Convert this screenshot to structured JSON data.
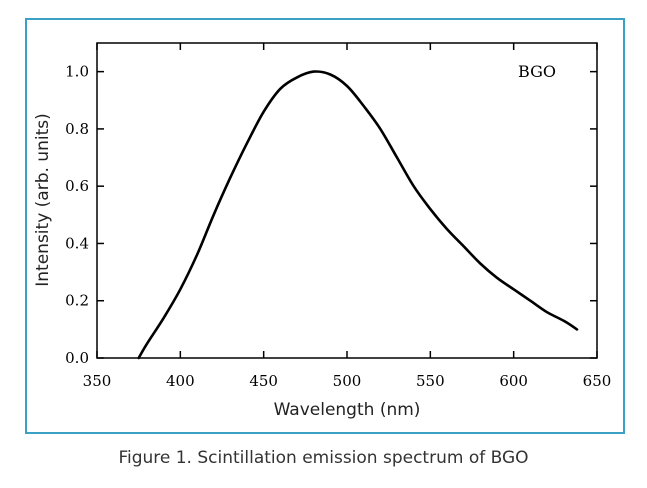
{
  "caption": "Figure 1. Scintillation emission spectrum of BGO",
  "colors": {
    "frame": "#3aa0c4",
    "line": "#000000"
  },
  "chart_data": {
    "type": "line",
    "title": "",
    "xlabel": "Wavelength (nm)",
    "ylabel": "Intensity (arb. units)",
    "xlim": [
      350,
      650
    ],
    "ylim": [
      0.0,
      1.1
    ],
    "x_ticks": [
      350,
      400,
      450,
      500,
      550,
      600,
      650
    ],
    "x_tick_labels": [
      "350",
      "400",
      "450",
      "500",
      "550",
      "600",
      "650"
    ],
    "y_ticks": [
      0.0,
      0.2,
      0.4,
      0.6,
      0.8,
      1.0
    ],
    "y_tick_labels": [
      "0.0",
      "0.2",
      "0.4",
      "0.6",
      "0.8",
      "1.0"
    ],
    "grid": false,
    "annotation": "BGO",
    "series": [
      {
        "name": "BGO",
        "x": [
          375,
          380,
          390,
          400,
          410,
          420,
          430,
          440,
          450,
          460,
          470,
          480,
          490,
          500,
          510,
          520,
          530,
          540,
          550,
          560,
          570,
          580,
          590,
          600,
          610,
          620,
          630,
          638
        ],
        "y": [
          0.0,
          0.05,
          0.14,
          0.24,
          0.36,
          0.5,
          0.63,
          0.75,
          0.86,
          0.94,
          0.98,
          1.0,
          0.99,
          0.95,
          0.88,
          0.8,
          0.7,
          0.6,
          0.52,
          0.45,
          0.39,
          0.33,
          0.28,
          0.24,
          0.2,
          0.16,
          0.13,
          0.1
        ]
      }
    ]
  }
}
